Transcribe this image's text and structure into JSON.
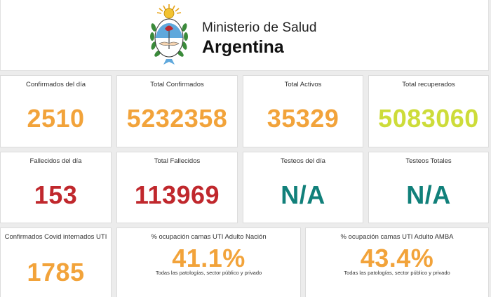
{
  "header": {
    "ministry": "Ministerio de Salud",
    "country": "Argentina",
    "emblem_icon": "argentina-coat-of-arms-icon"
  },
  "stats": {
    "confirmados_dia": {
      "label": "Confirmados del día",
      "value": "2510"
    },
    "total_confirmados": {
      "label": "Total Confirmados",
      "value": "5232358"
    },
    "total_activos": {
      "label": "Total Activos",
      "value": "35329"
    },
    "total_recuperados": {
      "label": "Total recuperados",
      "value": "5083060"
    },
    "fallecidos_dia": {
      "label": "Fallecidos del día",
      "value": "153"
    },
    "total_fallecidos": {
      "label": "Total Fallecidos",
      "value": "113969"
    },
    "testeos_dia": {
      "label": "Testeos del día",
      "value": "N/A"
    },
    "testeos_totales": {
      "label": "Testeos Totales",
      "value": "N/A"
    },
    "internados_uti": {
      "label": "Confirmados Covid internados UTI",
      "value": "1785"
    },
    "ocupacion_nacion": {
      "label": "% ocupación camas UTI Adulto Nación",
      "value": "41.1%",
      "sub": "Todas las patologías, sector público y privado"
    },
    "ocupacion_amba": {
      "label": "% ocupación camas UTI Adulto AMBA",
      "value": "43.4%",
      "sub": "Todas las patologías, sector público y privado"
    }
  },
  "colors": {
    "orange": "#f2a33a",
    "lime": "#cddc39",
    "red": "#c0282d",
    "teal": "#11807a"
  }
}
